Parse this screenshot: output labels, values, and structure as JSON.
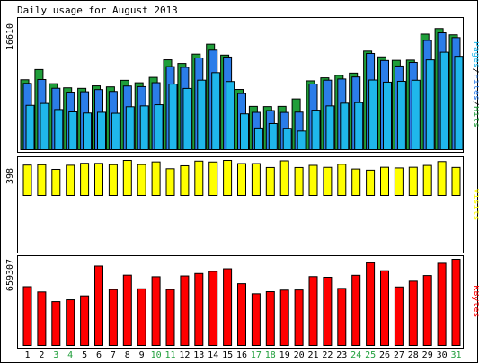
{
  "chart_data": {
    "type": "bar",
    "title": "Daily usage for August 2013",
    "categories": [
      "1",
      "2",
      "3",
      "4",
      "5",
      "6",
      "7",
      "8",
      "9",
      "10",
      "11",
      "12",
      "13",
      "14",
      "15",
      "16",
      "17",
      "18",
      "19",
      "20",
      "21",
      "22",
      "23",
      "24",
      "25",
      "26",
      "27",
      "28",
      "29",
      "30",
      "31"
    ],
    "weekend_days": [
      "3",
      "4",
      "10",
      "11",
      "17",
      "18",
      "24",
      "25",
      "31"
    ],
    "panels": [
      {
        "name": "pages-files-hits",
        "ylabel": "16610",
        "ymax": 16610,
        "legend": [
          "Pages",
          "Files",
          "Hits"
        ],
        "series": [
          {
            "name": "Hits",
            "color": "#1f9e3a",
            "values": [
              9030,
              10350,
              8520,
              7990,
              7920,
              8240,
              8110,
              8960,
              8640,
              9340,
              11610,
              11140,
              12350,
              13630,
              12220,
              7780,
              5590,
              5560,
              5590,
              6550,
              8890,
              9280,
              9600,
              9890,
              12740,
              11990,
              11540,
              11570,
              14930,
              15650,
              14840
            ]
          },
          {
            "name": "Files",
            "color": "#2b7de9",
            "values": [
              8560,
              9060,
              7930,
              7430,
              7480,
              7760,
              7520,
              8220,
              8140,
              8650,
              10730,
              10640,
              11850,
              12860,
              11970,
              7250,
              4820,
              5050,
              4810,
              4850,
              8480,
              8980,
              9130,
              9390,
              12430,
              11520,
              10810,
              11270,
              14120,
              15100,
              14480
            ]
          },
          {
            "name": "Pages",
            "color": "#1fb7eb",
            "values": [
              5720,
              5970,
              5180,
              4880,
              4730,
              4830,
              4700,
              5540,
              5650,
              5800,
              8470,
              7910,
              8980,
              9950,
              8800,
              4620,
              2800,
              3370,
              2760,
              2400,
              5100,
              5650,
              6000,
              6080,
              9000,
              8720,
              8830,
              8970,
              11600,
              12590,
              12060
            ]
          }
        ]
      },
      {
        "name": "visits",
        "ylabel": "398",
        "ymax": 398,
        "legend": [
          "Visits"
        ],
        "series": [
          {
            "name": "Visits",
            "color": "#ffff00",
            "values": [
              345,
              349,
              296,
              343,
              365,
              364,
              350,
              398,
              351,
              381,
              303,
              337,
              390,
              380,
              398,
              362,
              362,
              317,
              393,
              317,
              342,
              319,
              354,
              300,
              287,
              320,
              312,
              320,
              341,
              385,
              318
            ]
          }
        ]
      },
      {
        "name": "kbytes",
        "ylabel": "659307",
        "ymax": 659307,
        "legend": [
          "KBytes"
        ],
        "series": [
          {
            "name": "KBytes",
            "color": "#ff0000",
            "values": [
              450000,
              410000,
              336000,
              350000,
              380000,
              608000,
              428000,
              538000,
              434000,
              526000,
              428000,
              532000,
              551000,
              567000,
              587000,
              473000,
              396000,
              412000,
              424000,
              425000,
              527000,
              522000,
              437000,
              537000,
              633000,
              572000,
              448000,
              492000,
              535000,
              629000,
              659307
            ]
          }
        ]
      }
    ]
  }
}
